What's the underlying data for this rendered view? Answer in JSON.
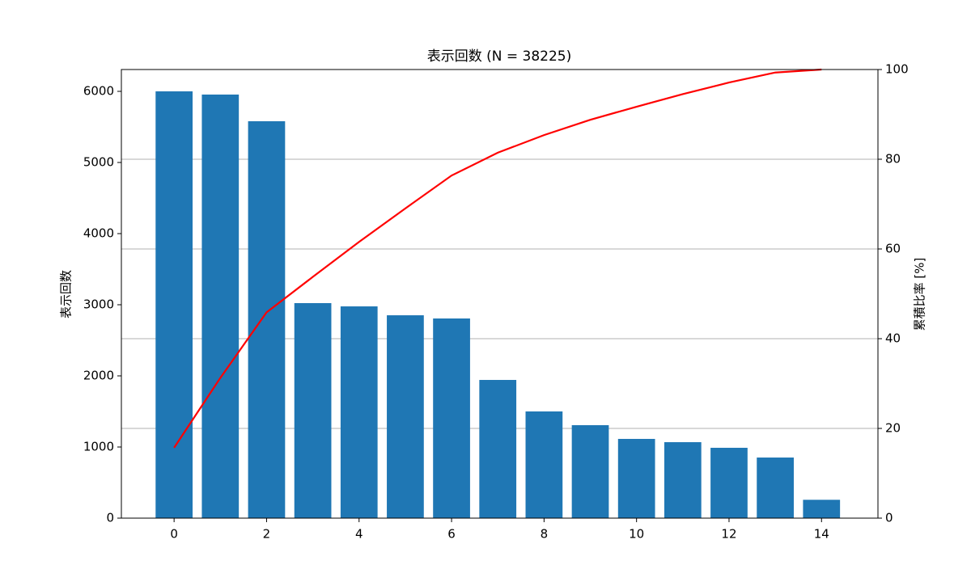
{
  "chart_data": {
    "type": "pareto",
    "title": "表示回数 (N = 38225)",
    "y_label": "表示回数",
    "y2_label": "累積比率 [%]",
    "x": [
      0,
      1,
      2,
      3,
      4,
      5,
      6,
      7,
      8,
      9,
      10,
      11,
      12,
      13,
      14
    ],
    "series": [
      {
        "type": "bar",
        "color": "#1f77b4",
        "values": [
          6000,
          5955,
          5580,
          3023,
          2977,
          2852,
          2807,
          1943,
          1500,
          1307,
          1114,
          1068,
          989,
          852,
          258
        ]
      },
      {
        "type": "line",
        "axis": "y2",
        "color": "#ff0000",
        "values": [
          15.7,
          31.27,
          45.87,
          53.78,
          61.57,
          69.03,
          76.37,
          81.46,
          85.38,
          88.8,
          91.71,
          94.51,
          97.1,
          99.33,
          100
        ]
      }
    ],
    "xlim": [
      -1.14,
      15.22
    ],
    "xticks": [
      0,
      2,
      4,
      6,
      8,
      10,
      12,
      14
    ],
    "ylim": [
      0,
      6307
    ],
    "yticks": [
      0,
      1000,
      2000,
      3000,
      4000,
      5000,
      6000
    ],
    "y2lim": [
      0,
      100
    ],
    "y2ticks": [
      0,
      20,
      40,
      60,
      80,
      100
    ],
    "grid": "y2"
  }
}
